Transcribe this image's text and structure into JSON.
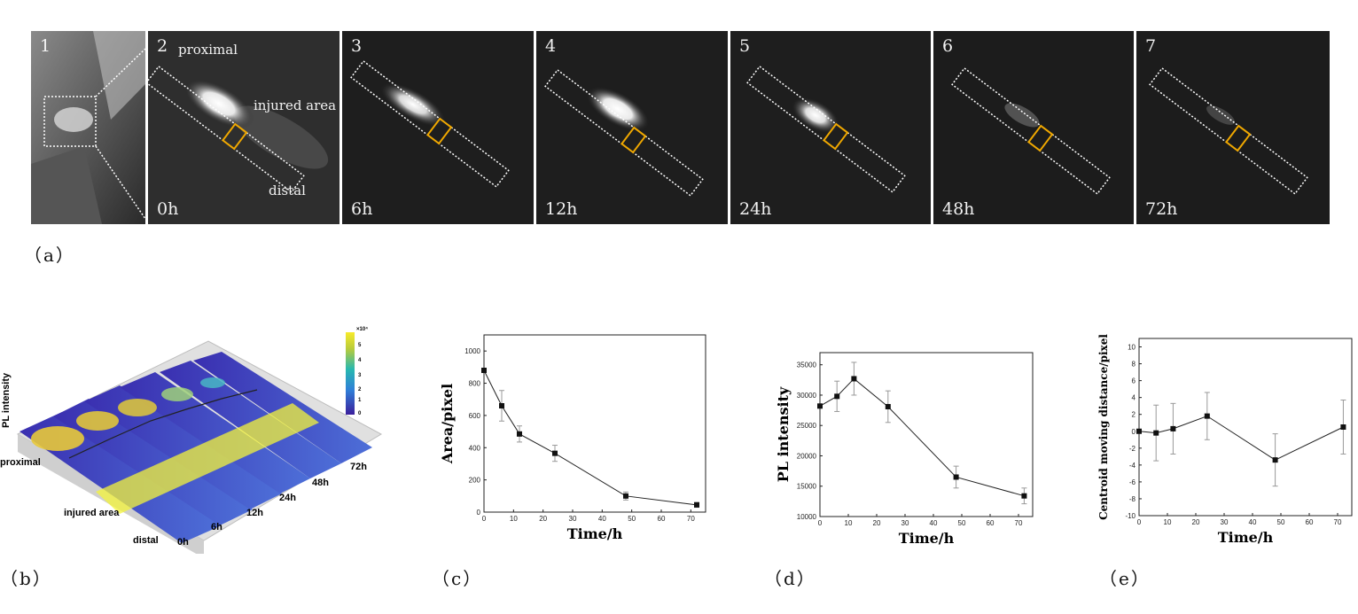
{
  "figure_a": {
    "caption": "（a）",
    "panels": [
      {
        "num": "1",
        "time": ""
      },
      {
        "num": "2",
        "time": "0h",
        "labels": {
          "proximal": "proximal",
          "injured": "injured area",
          "distal": "distal"
        }
      },
      {
        "num": "3",
        "time": "6h"
      },
      {
        "num": "4",
        "time": "12h"
      },
      {
        "num": "5",
        "time": "24h"
      },
      {
        "num": "6",
        "time": "48h"
      },
      {
        "num": "7",
        "time": "72h"
      }
    ],
    "roi_box_color": "#f0a800"
  },
  "figure_b": {
    "caption": "（b）",
    "z_label": "PL intensity",
    "side_labels": {
      "proximal": "proximal",
      "injured": "injured area",
      "distal": "distal"
    },
    "time_labels": [
      "0h",
      "6h",
      "12h",
      "24h",
      "48h",
      "72h"
    ],
    "colorbar": {
      "exponent": "×10⁴",
      "ticks": [
        "5",
        "4",
        "3",
        "2",
        "1",
        "0"
      ]
    }
  },
  "captions": {
    "c": "（c）",
    "d": "（d）",
    "e": "（e）"
  },
  "chart_data": [
    {
      "type": "line",
      "x": [
        0,
        6,
        12,
        24,
        48,
        72
      ],
      "y": [
        880,
        660,
        485,
        365,
        100,
        45
      ],
      "err": [
        0,
        95,
        50,
        50,
        25,
        15
      ],
      "xlabel": "Time/h",
      "ylabel": "Area/pixel",
      "xlim": [
        0,
        75
      ],
      "ylim": [
        0,
        1100
      ],
      "xticks": [
        0,
        10,
        20,
        30,
        40,
        50,
        60,
        70
      ],
      "yticks": [
        0,
        200,
        400,
        600,
        800,
        1000
      ]
    },
    {
      "type": "line",
      "x": [
        0,
        6,
        12,
        24,
        48,
        72
      ],
      "y": [
        28200,
        29800,
        32700,
        28100,
        16500,
        13400
      ],
      "err": [
        0,
        2500,
        2700,
        2600,
        1800,
        1300
      ],
      "xlabel": "Time/h",
      "ylabel": "PL intensity",
      "xlim": [
        0,
        75
      ],
      "ylim": [
        10000,
        37000
      ],
      "xticks": [
        0,
        10,
        20,
        30,
        40,
        50,
        60,
        70
      ],
      "yticks": [
        10000,
        15000,
        20000,
        25000,
        30000,
        35000
      ]
    },
    {
      "type": "line",
      "x": [
        0,
        6,
        12,
        24,
        48,
        72
      ],
      "y": [
        0,
        -0.2,
        0.3,
        1.8,
        -3.4,
        0.5
      ],
      "err": [
        0,
        3.3,
        3.0,
        2.8,
        3.1,
        3.2
      ],
      "xlabel": "Time/h",
      "ylabel": "Centroid moving distance/pixel",
      "xlim": [
        0,
        75
      ],
      "ylim": [
        -10,
        11
      ],
      "xticks": [
        0,
        10,
        20,
        30,
        40,
        50,
        60,
        70
      ],
      "yticks": [
        -10,
        -8,
        -6,
        -4,
        -2,
        0,
        2,
        4,
        6,
        8,
        10
      ]
    }
  ]
}
